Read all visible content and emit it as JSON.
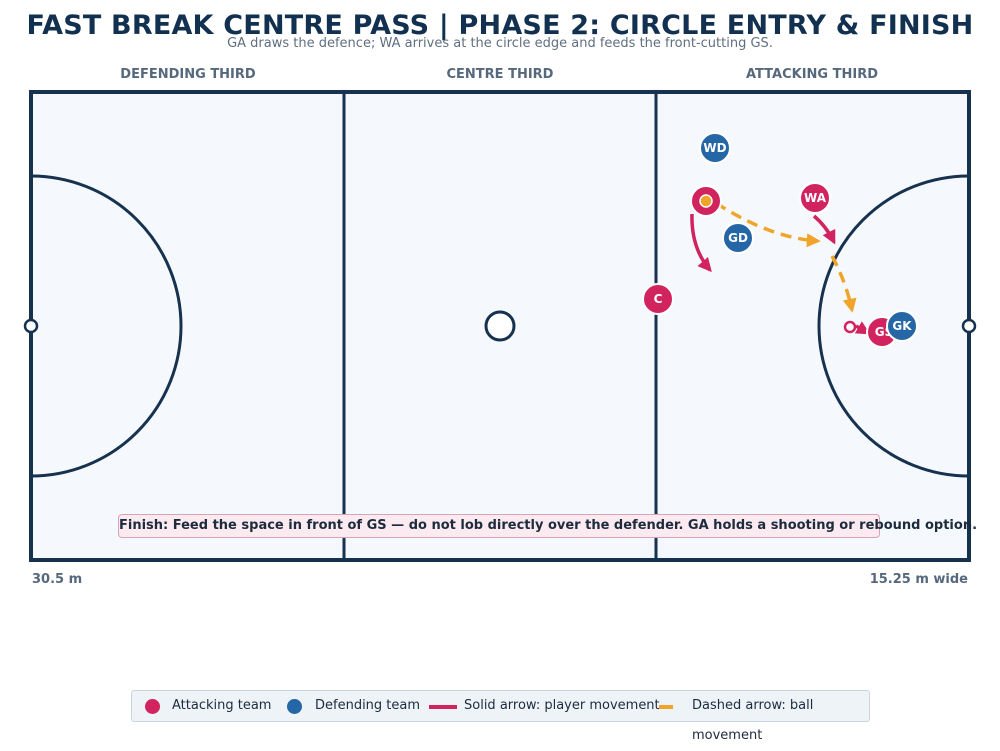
{
  "title": "FAST BREAK CENTRE PASS | PHASE 2: CIRCLE ENTRY & FINISH",
  "subtitle": "GA draws the defence; WA arrives at the circle edge and feeds the front-cutting GS.",
  "zones": {
    "defending": "DEFENDING THIRD",
    "centre": "CENTRE THIRD",
    "attacking": "ATTACKING THIRD"
  },
  "dimensions": {
    "length": "30.5 m",
    "width": "15.25 m wide"
  },
  "players": {
    "wd": "WD",
    "gd": "GD",
    "wa": "WA",
    "c": "C",
    "gs": "GS",
    "gk": "GK"
  },
  "note": "Finish: Feed the space in front of GS — do not lob directly over the defender. GA holds a shooting or rebound option.",
  "legend": {
    "attacking": "Attacking team",
    "defending": "Defending team",
    "solid": "Solid arrow: player movement",
    "dashed": "Dashed arrow: ball movement"
  },
  "colors": {
    "attacking": "#d1245f",
    "defending": "#2566a6",
    "ball": "#f0a52a",
    "court_line": "#16324f",
    "court_fill": "#f5f8fc"
  }
}
